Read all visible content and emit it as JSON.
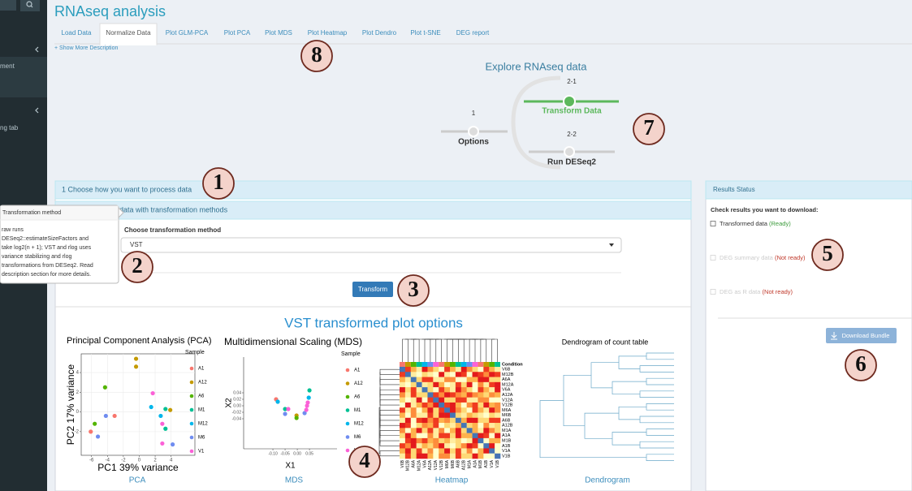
{
  "sidebar": {
    "items": [
      "ment",
      "ng tab"
    ]
  },
  "header": {
    "title": "RNAseq analysis"
  },
  "tabs": [
    "Load Data",
    "Normalize Data",
    "Plot GLM-PCA",
    "Plot PCA",
    "Plot MDS",
    "Plot Heatmap",
    "Plot Dendro",
    "Plot t-SNE",
    "DEG report"
  ],
  "show_more": "+ Show More Description",
  "workflow": {
    "title": "Explore RNAseq data",
    "steps": [
      {
        "num": "1",
        "label": "Options"
      },
      {
        "num": "2-1",
        "label": "Transform Data"
      },
      {
        "num": "2-2",
        "label": "Run DESeq2"
      }
    ]
  },
  "panel": {
    "header": "1 Choose how you want to process data",
    "subheader": "data with transformation methods",
    "select_label": "Choose transformation method",
    "select_value": "VST",
    "button": "Transform",
    "plots_title": "VST transformed plot options"
  },
  "tooltip": {
    "title": "Transformation method",
    "lines": [
      "raw runs",
      "DESeq2::estimateSizeFactors and",
      "take log2(n + 1); VST and rlog uses",
      "variance stabilizing and rlog",
      "transformations from DESeq2. Read",
      "description section for more details."
    ]
  },
  "plots": {
    "pca": {
      "type": "scatter",
      "title": "Principal Component Analysis (PCA)",
      "x_label": "PC1 39% variance",
      "y_label": "PC2 17% variance",
      "legend_title": "Sample",
      "caption": "PCA",
      "grid": true,
      "xlim": [
        -7.3,
        7
      ],
      "ylim": [
        -4.4,
        5.9
      ],
      "xticks": [
        -6,
        -4,
        -2,
        0,
        2,
        4
      ],
      "yticks": [
        -2,
        0,
        2,
        4
      ],
      "series": [
        {
          "name": "A1",
          "color": "#f8766d",
          "x": [
            -6.1,
            -3.1
          ],
          "y": [
            -2.0,
            -0.4
          ]
        },
        {
          "name": "A12",
          "color": "#c49a00",
          "x": [
            -0.4,
            -0.4,
            3.9
          ],
          "y": [
            5.4,
            4.6,
            0.2
          ]
        },
        {
          "name": "A6",
          "color": "#53b400",
          "x": [
            -4.3,
            -5.6
          ],
          "y": [
            2.5,
            -1.2
          ]
        },
        {
          "name": "M1",
          "color": "#00c094",
          "x": [
            3.3,
            3.3
          ],
          "y": [
            0.3,
            -1.7
          ]
        },
        {
          "name": "M12",
          "color": "#00b6eb",
          "x": [
            1.5,
            2.7
          ],
          "y": [
            0.5,
            -0.4
          ]
        },
        {
          "name": "M6",
          "color": "#6f8cf0",
          "x": [
            -4.2,
            -5.2,
            4.2
          ],
          "y": [
            -0.4,
            -2.5,
            -3.3
          ]
        },
        {
          "name": "V1",
          "color": "#fb61d7",
          "x": [
            1.7,
            2.9,
            2.9
          ],
          "y": [
            1.9,
            -1.2,
            -3.2
          ]
        }
      ]
    },
    "mds": {
      "type": "scatter",
      "title": "Multidimensional Scaling (MDS)",
      "x_label": "X1",
      "y_label": "X2",
      "legend_title": "Sample",
      "caption": "MDS",
      "grid": false,
      "xlim": [
        -0.22,
        0.163
      ],
      "ylim": [
        -0.1325,
        0.15
      ],
      "xticks": [
        {
          "value": -0.1,
          "label": "-0.10"
        },
        {
          "value": -0.05,
          "label": "-0.05"
        },
        {
          "value": 0,
          "label": "0.00"
        },
        0.05
      ],
      "yticks": [
        0.04,
        0.02,
        {
          "value": 0,
          "label": "0.00"
        },
        -0.02,
        -0.04
      ],
      "series": [
        {
          "name": "A1",
          "color": "#f8766d",
          "x": [
            -0.087
          ],
          "y": [
            0.02
          ]
        },
        {
          "name": "A12",
          "color": "#c49a00",
          "x": [
            -0.003
          ],
          "y": [
            -0.03
          ]
        },
        {
          "name": "A6",
          "color": "#53b400",
          "x": [
            -0.003
          ],
          "y": [
            -0.0375
          ]
        },
        {
          "name": "M1",
          "color": "#00c094",
          "x": [
            -0.05,
            0.05
          ],
          "y": [
            -0.01,
            0.0475
          ]
        },
        {
          "name": "M12",
          "color": "#00b6eb",
          "x": [
            -0.08,
            0.047
          ],
          "y": [
            0.0125,
            0.025
          ]
        },
        {
          "name": "M6",
          "color": "#6f8cf0",
          "x": [
            -0.05,
            0.03
          ],
          "y": [
            -0.025,
            -0.0225
          ]
        },
        {
          "name": "V1",
          "color": "#fb61d7",
          "x": [
            -0.037,
            0.037,
            0.043,
            0.04
          ],
          "y": [
            -0.01,
            -0.0125,
            0.01,
            0
          ]
        }
      ]
    },
    "heatmap": {
      "caption": "Heatmap",
      "annotation_label": "Condition",
      "rows": [
        "V6B",
        "M12B",
        "A6A",
        "M12A",
        "V6A",
        "A12A",
        "V12A",
        "V12B",
        "M6A",
        "M6B",
        "A6B",
        "A12B",
        "M1A",
        "A1A",
        "M1B",
        "A1B",
        "V1A",
        "V1B"
      ]
    },
    "dendrogram": {
      "title": "Dendrogram of count table",
      "caption": "Dendrogram"
    }
  },
  "results": {
    "header": "Results Status",
    "prompt": "Check results you want to download:",
    "items": [
      {
        "label": "Transformed data",
        "status": "(Ready)"
      },
      {
        "label": "DEG summary data",
        "status": "(Not ready)"
      },
      {
        "label": "DEG as R data",
        "status": "(Not ready)"
      }
    ],
    "button": "Download Bundle"
  },
  "annotations": [
    "1",
    "2",
    "3",
    "4",
    "5",
    "6",
    "7",
    "8"
  ]
}
